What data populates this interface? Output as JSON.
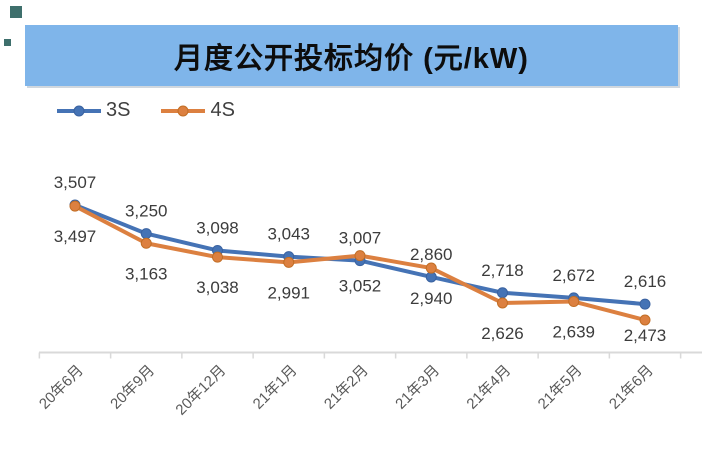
{
  "header": {
    "banner_color": "#7FB5EA",
    "title_color": "#0d0d0d"
  },
  "artifact": {
    "color": "#3E6F6C"
  },
  "chart_data": {
    "type": "line",
    "title": "月度公开投标均价 (元/kW)",
    "categories": [
      "20年6月",
      "20年9月",
      "20年12月",
      "21年1月",
      "21年2月",
      "21年3月",
      "21年4月",
      "21年5月",
      "21年6月"
    ],
    "series": [
      {
        "name": "3S",
        "color": "#4573B5",
        "dot_stroke": "#3A62A0",
        "values": [
          3507,
          3250,
          3098,
          3043,
          3007,
          2860,
          2718,
          2672,
          2616
        ]
      },
      {
        "name": "4S",
        "color": "#DC8040",
        "dot_stroke": "#C26E25",
        "values": [
          3497,
          3163,
          3038,
          2991,
          3052,
          2940,
          2626,
          2639,
          2473
        ]
      }
    ],
    "value_labels_shown": true,
    "label_color": "#3C3C3C",
    "axis_label_color": "#595959",
    "axis_line_color": "#D9D9D9",
    "legend_position": "top-left",
    "grid": false,
    "ylim": [
      2400,
      3600
    ]
  }
}
